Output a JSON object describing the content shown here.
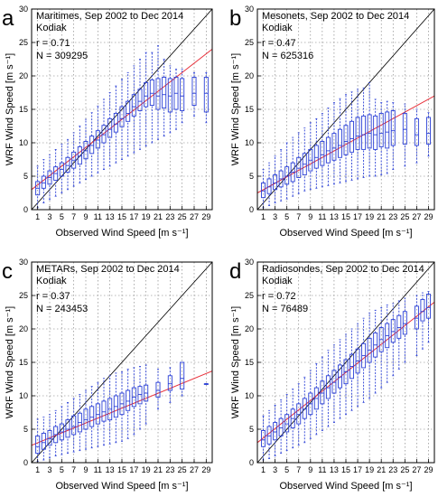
{
  "colors": {
    "box": "#2a3fd6",
    "fit": "#e8323c",
    "oneToOne": "#000000",
    "grid": "#777777"
  },
  "chart_data": [
    {
      "type": "boxplot",
      "panel_label": "a",
      "title": "Maritimes, Sep 2002 to Dec 2014",
      "subtitle": "Kodiak",
      "stat_r": "r = 0.71",
      "stat_n": "N = 309295",
      "xlabel": "Observed Wind Speed [m s⁻¹]",
      "ylabel": "WRF Wind Speed [m s⁻¹]",
      "xlim": [
        0,
        30
      ],
      "ylim": [
        0,
        30
      ],
      "x_ticks": [
        1,
        3,
        5,
        7,
        9,
        11,
        13,
        15,
        17,
        19,
        21,
        23,
        25,
        27,
        29
      ],
      "y_ticks": [
        0,
        5,
        10,
        15,
        20,
        25,
        30
      ],
      "grid": true,
      "fit_line": [
        [
          0,
          3.0
        ],
        [
          30,
          24.0
        ]
      ],
      "boxes": [
        {
          "x": 1,
          "q1": 2.2,
          "med": 3.2,
          "q3": 4.2,
          "lo": 0.3,
          "hi": 6.5
        },
        {
          "x": 2,
          "q1": 3.2,
          "med": 4.0,
          "q3": 5.0,
          "lo": 1.0,
          "hi": 7.5
        },
        {
          "x": 3,
          "q1": 3.8,
          "med": 4.8,
          "q3": 5.8,
          "lo": 1.5,
          "hi": 8.2
        },
        {
          "x": 4,
          "q1": 4.4,
          "med": 5.4,
          "q3": 6.4,
          "lo": 2.0,
          "hi": 9.0
        },
        {
          "x": 5,
          "q1": 5.0,
          "med": 6.0,
          "q3": 7.0,
          "lo": 2.5,
          "hi": 9.8
        },
        {
          "x": 6,
          "q1": 5.6,
          "med": 6.6,
          "q3": 7.8,
          "lo": 3.0,
          "hi": 10.5
        },
        {
          "x": 7,
          "q1": 6.2,
          "med": 7.4,
          "q3": 8.6,
          "lo": 3.5,
          "hi": 11.5
        },
        {
          "x": 8,
          "q1": 6.8,
          "med": 8.0,
          "q3": 9.4,
          "lo": 4.0,
          "hi": 12.5
        },
        {
          "x": 9,
          "q1": 7.6,
          "med": 8.8,
          "q3": 10.2,
          "lo": 4.5,
          "hi": 13.5
        },
        {
          "x": 10,
          "q1": 8.4,
          "med": 9.6,
          "q3": 11.0,
          "lo": 5.0,
          "hi": 14.5
        },
        {
          "x": 11,
          "q1": 9.2,
          "med": 10.4,
          "q3": 11.8,
          "lo": 5.5,
          "hi": 15.5
        },
        {
          "x": 12,
          "q1": 10.0,
          "med": 11.2,
          "q3": 12.6,
          "lo": 6.0,
          "hi": 16.5
        },
        {
          "x": 13,
          "q1": 10.8,
          "med": 12.0,
          "q3": 13.6,
          "lo": 6.5,
          "hi": 17.5
        },
        {
          "x": 14,
          "q1": 11.6,
          "med": 12.8,
          "q3": 14.4,
          "lo": 7.0,
          "hi": 18.5
        },
        {
          "x": 15,
          "q1": 12.4,
          "med": 13.6,
          "q3": 15.4,
          "lo": 7.5,
          "hi": 19.5
        },
        {
          "x": 16,
          "q1": 13.2,
          "med": 14.4,
          "q3": 16.2,
          "lo": 8.0,
          "hi": 20.5
        },
        {
          "x": 17,
          "q1": 14.0,
          "med": 15.4,
          "q3": 17.2,
          "lo": 8.5,
          "hi": 21.5
        },
        {
          "x": 18,
          "q1": 14.8,
          "med": 16.2,
          "q3": 18.0,
          "lo": 9.0,
          "hi": 22.5
        },
        {
          "x": 19,
          "q1": 15.4,
          "med": 17.0,
          "q3": 19.0,
          "lo": 9.5,
          "hi": 23.5
        },
        {
          "x": 20,
          "q1": 15.6,
          "med": 17.4,
          "q3": 19.4,
          "lo": 10.0,
          "hi": 23.5
        },
        {
          "x": 21,
          "q1": 15.0,
          "med": 17.0,
          "q3": 19.6,
          "lo": 10.5,
          "hi": 24.5
        },
        {
          "x": 22,
          "q1": 15.2,
          "med": 17.2,
          "q3": 19.8,
          "lo": 11.0,
          "hi": 22.5
        },
        {
          "x": 23,
          "q1": 14.6,
          "med": 17.0,
          "q3": 19.6,
          "lo": 11.5,
          "hi": 21.5
        },
        {
          "x": 24,
          "q1": 15.0,
          "med": 17.4,
          "q3": 19.8,
          "lo": 12.0,
          "hi": 21.0
        },
        {
          "x": 25,
          "q1": 14.8,
          "med": 17.0,
          "q3": 19.6,
          "lo": 13.0,
          "hi": 21.0
        },
        {
          "x": 27,
          "q1": 15.6,
          "med": 17.4,
          "q3": 19.8,
          "lo": 14.0,
          "hi": 20.5
        },
        {
          "x": 29,
          "q1": 14.6,
          "med": 17.4,
          "q3": 19.8,
          "lo": 13.0,
          "hi": 20.5
        }
      ]
    },
    {
      "type": "boxplot",
      "panel_label": "b",
      "title": "Mesonets, Sep 2002 to Dec 2014",
      "subtitle": "Kodiak",
      "stat_r": "r = 0.47",
      "stat_n": "N = 625316",
      "xlabel": "Observed Wind Speed [m s⁻¹]",
      "ylabel": "WRF Wind Speed [m s⁻¹]",
      "xlim": [
        0,
        30
      ],
      "ylim": [
        0,
        30
      ],
      "x_ticks": [
        1,
        3,
        5,
        7,
        9,
        11,
        13,
        15,
        17,
        19,
        21,
        23,
        25,
        27,
        29
      ],
      "y_ticks": [
        0,
        5,
        10,
        15,
        20,
        25,
        30
      ],
      "grid": true,
      "fit_line": [
        [
          0,
          2.5
        ],
        [
          30,
          17.0
        ]
      ],
      "boxes": [
        {
          "x": 1,
          "q1": 1.8,
          "med": 2.8,
          "q3": 4.0,
          "lo": 0.3,
          "hi": 6.0
        },
        {
          "x": 2,
          "q1": 2.4,
          "med": 3.4,
          "q3": 4.6,
          "lo": 0.6,
          "hi": 7.0
        },
        {
          "x": 3,
          "q1": 3.0,
          "med": 4.0,
          "q3": 5.2,
          "lo": 1.0,
          "hi": 8.0
        },
        {
          "x": 4,
          "q1": 3.4,
          "med": 4.6,
          "q3": 5.8,
          "lo": 1.3,
          "hi": 9.0
        },
        {
          "x": 5,
          "q1": 3.8,
          "med": 5.0,
          "q3": 6.4,
          "lo": 1.6,
          "hi": 10.0
        },
        {
          "x": 6,
          "q1": 4.2,
          "med": 5.6,
          "q3": 7.0,
          "lo": 2.0,
          "hi": 10.8
        },
        {
          "x": 7,
          "q1": 4.8,
          "med": 6.2,
          "q3": 7.8,
          "lo": 2.4,
          "hi": 11.5
        },
        {
          "x": 8,
          "q1": 5.2,
          "med": 6.8,
          "q3": 8.4,
          "lo": 2.8,
          "hi": 12.2
        },
        {
          "x": 9,
          "q1": 5.8,
          "med": 7.4,
          "q3": 9.0,
          "lo": 3.0,
          "hi": 13.0
        },
        {
          "x": 10,
          "q1": 6.2,
          "med": 7.8,
          "q3": 9.6,
          "lo": 3.2,
          "hi": 13.6
        },
        {
          "x": 11,
          "q1": 6.6,
          "med": 8.2,
          "q3": 10.2,
          "lo": 3.4,
          "hi": 14.4
        },
        {
          "x": 12,
          "q1": 7.0,
          "med": 8.8,
          "q3": 10.8,
          "lo": 3.6,
          "hi": 15.2
        },
        {
          "x": 13,
          "q1": 7.4,
          "med": 9.2,
          "q3": 11.4,
          "lo": 3.8,
          "hi": 16.0
        },
        {
          "x": 14,
          "q1": 7.8,
          "med": 9.6,
          "q3": 12.0,
          "lo": 4.0,
          "hi": 16.6
        },
        {
          "x": 15,
          "q1": 8.2,
          "med": 10.2,
          "q3": 12.6,
          "lo": 4.2,
          "hi": 17.2
        },
        {
          "x": 16,
          "q1": 8.6,
          "med": 10.6,
          "q3": 13.2,
          "lo": 4.4,
          "hi": 17.6
        },
        {
          "x": 17,
          "q1": 9.0,
          "med": 11.0,
          "q3": 13.8,
          "lo": 4.6,
          "hi": 18.0
        },
        {
          "x": 18,
          "q1": 9.0,
          "med": 11.2,
          "q3": 14.0,
          "lo": 4.8,
          "hi": 18.2
        },
        {
          "x": 19,
          "q1": 9.2,
          "med": 11.4,
          "q3": 14.2,
          "lo": 5.0,
          "hi": 19.0
        },
        {
          "x": 20,
          "q1": 9.0,
          "med": 11.2,
          "q3": 14.0,
          "lo": 5.0,
          "hi": 16.5
        },
        {
          "x": 21,
          "q1": 9.4,
          "med": 11.4,
          "q3": 14.4,
          "lo": 5.2,
          "hi": 16.0
        },
        {
          "x": 22,
          "q1": 9.2,
          "med": 11.6,
          "q3": 14.6,
          "lo": 5.4,
          "hi": 16.2
        },
        {
          "x": 23,
          "q1": 9.6,
          "med": 11.8,
          "q3": 14.8,
          "lo": 6.0,
          "hi": 16.0
        },
        {
          "x": 25,
          "q1": 9.8,
          "med": 12.0,
          "q3": 14.4,
          "lo": 6.5,
          "hi": 15.8
        },
        {
          "x": 27,
          "q1": 9.6,
          "med": 11.2,
          "q3": 13.6,
          "lo": 7.0,
          "hi": 15.0
        },
        {
          "x": 29,
          "q1": 9.8,
          "med": 11.4,
          "q3": 13.8,
          "lo": 8.0,
          "hi": 14.5
        }
      ]
    },
    {
      "type": "boxplot",
      "panel_label": "c",
      "title": "METARs, Sep 2002 to Dec 2014",
      "subtitle": "Kodiak",
      "stat_r": "r = 0.37",
      "stat_n": "N = 243453",
      "xlabel": "Observed Wind Speed [m s⁻¹]",
      "ylabel": "WRF Wind Speed [m s⁻¹]",
      "xlim": [
        0,
        30
      ],
      "ylim": [
        0,
        30
      ],
      "x_ticks": [
        1,
        3,
        5,
        7,
        9,
        11,
        13,
        15,
        17,
        19,
        21,
        23,
        25,
        27,
        29
      ],
      "y_ticks": [
        0,
        5,
        10,
        15,
        20,
        25,
        30
      ],
      "grid": true,
      "fit_line": [
        [
          0,
          2.6
        ],
        [
          30,
          13.7
        ]
      ],
      "boxes": [
        {
          "x": 1,
          "q1": 1.4,
          "med": 2.4,
          "q3": 4.0,
          "lo": 0.2,
          "hi": 6.5
        },
        {
          "x": 2,
          "q1": 2.0,
          "med": 3.0,
          "q3": 4.4,
          "lo": 0.4,
          "hi": 6.8
        },
        {
          "x": 3,
          "q1": 2.6,
          "med": 3.6,
          "q3": 4.8,
          "lo": 0.7,
          "hi": 7.2
        },
        {
          "x": 4,
          "q1": 3.0,
          "med": 4.2,
          "q3": 5.4,
          "lo": 1.0,
          "hi": 7.8
        },
        {
          "x": 5,
          "q1": 3.4,
          "med": 4.6,
          "q3": 5.8,
          "lo": 1.2,
          "hi": 8.4
        },
        {
          "x": 6,
          "q1": 3.8,
          "med": 5.0,
          "q3": 6.4,
          "lo": 1.4,
          "hi": 9.0
        },
        {
          "x": 7,
          "q1": 4.2,
          "med": 5.4,
          "q3": 7.0,
          "lo": 1.6,
          "hi": 9.6
        },
        {
          "x": 8,
          "q1": 4.6,
          "med": 6.0,
          "q3": 7.4,
          "lo": 1.8,
          "hi": 10.2
        },
        {
          "x": 9,
          "q1": 5.0,
          "med": 6.4,
          "q3": 8.0,
          "lo": 2.0,
          "hi": 10.8
        },
        {
          "x": 10,
          "q1": 5.4,
          "med": 6.8,
          "q3": 8.4,
          "lo": 2.2,
          "hi": 11.4
        },
        {
          "x": 11,
          "q1": 5.8,
          "med": 7.2,
          "q3": 8.8,
          "lo": 2.4,
          "hi": 12.0
        },
        {
          "x": 12,
          "q1": 6.2,
          "med": 7.6,
          "q3": 9.2,
          "lo": 2.6,
          "hi": 12.6
        },
        {
          "x": 13,
          "q1": 6.4,
          "med": 8.0,
          "q3": 9.6,
          "lo": 2.8,
          "hi": 13.0
        },
        {
          "x": 14,
          "q1": 6.8,
          "med": 8.4,
          "q3": 10.0,
          "lo": 3.0,
          "hi": 13.4
        },
        {
          "x": 15,
          "q1": 7.2,
          "med": 8.8,
          "q3": 10.4,
          "lo": 3.2,
          "hi": 13.6
        },
        {
          "x": 16,
          "q1": 7.8,
          "med": 9.2,
          "q3": 10.8,
          "lo": 3.6,
          "hi": 14.0
        },
        {
          "x": 17,
          "q1": 8.4,
          "med": 9.8,
          "q3": 11.2,
          "lo": 4.2,
          "hi": 14.2
        },
        {
          "x": 18,
          "q1": 8.8,
          "med": 10.2,
          "q3": 11.4,
          "lo": 5.0,
          "hi": 14.4
        },
        {
          "x": 19,
          "q1": 9.2,
          "med": 10.4,
          "q3": 11.6,
          "lo": 5.8,
          "hi": 14.6
        },
        {
          "x": 21,
          "q1": 9.8,
          "med": 10.8,
          "q3": 12.0,
          "lo": 8.0,
          "hi": 14.0
        },
        {
          "x": 23,
          "q1": 10.8,
          "med": 11.8,
          "q3": 13.0,
          "lo": 9.0,
          "hi": 14.2
        },
        {
          "x": 25,
          "q1": 11.0,
          "med": 12.6,
          "q3": 15.0,
          "lo": 10.0,
          "hi": 15.0
        },
        {
          "x": 29,
          "q1": 11.8,
          "med": 11.8,
          "q3": 11.8,
          "lo": 11.8,
          "hi": 11.8
        }
      ]
    },
    {
      "type": "boxplot",
      "panel_label": "d",
      "title": "Radiosondes, Sep 2002 to Dec 2014",
      "subtitle": "Kodiak",
      "stat_r": "r = 0.72",
      "stat_n": "N = 76489",
      "xlabel": "Observed Wind Speed [m s⁻¹]",
      "ylabel": "WRF Wind Speed [m s⁻¹]",
      "xlim": [
        0,
        30
      ],
      "ylim": [
        0,
        30
      ],
      "x_ticks": [
        1,
        3,
        5,
        7,
        9,
        11,
        13,
        15,
        17,
        19,
        21,
        23,
        25,
        27,
        29
      ],
      "y_ticks": [
        0,
        5,
        10,
        15,
        20,
        25,
        30
      ],
      "grid": true,
      "fit_line": [
        [
          0,
          3.0
        ],
        [
          30,
          24.0
        ]
      ],
      "boxes": [
        {
          "x": 1,
          "q1": 2.4,
          "med": 3.4,
          "q3": 4.8,
          "lo": 0.4,
          "hi": 7.0
        },
        {
          "x": 2,
          "q1": 2.8,
          "med": 4.0,
          "q3": 5.4,
          "lo": 0.6,
          "hi": 7.8
        },
        {
          "x": 3,
          "q1": 3.4,
          "med": 4.6,
          "q3": 6.0,
          "lo": 1.0,
          "hi": 8.6
        },
        {
          "x": 4,
          "q1": 4.0,
          "med": 5.2,
          "q3": 6.6,
          "lo": 1.4,
          "hi": 9.4
        },
        {
          "x": 5,
          "q1": 4.6,
          "med": 5.8,
          "q3": 7.2,
          "lo": 1.8,
          "hi": 10.2
        },
        {
          "x": 6,
          "q1": 5.2,
          "med": 6.6,
          "q3": 8.0,
          "lo": 2.2,
          "hi": 11.0
        },
        {
          "x": 7,
          "q1": 5.8,
          "med": 7.2,
          "q3": 8.8,
          "lo": 2.6,
          "hi": 11.8
        },
        {
          "x": 8,
          "q1": 6.6,
          "med": 8.0,
          "q3": 9.6,
          "lo": 3.0,
          "hi": 12.8
        },
        {
          "x": 9,
          "q1": 7.2,
          "med": 8.8,
          "q3": 10.4,
          "lo": 3.6,
          "hi": 13.8
        },
        {
          "x": 10,
          "q1": 8.0,
          "med": 9.6,
          "q3": 11.2,
          "lo": 4.2,
          "hi": 14.8
        },
        {
          "x": 11,
          "q1": 8.8,
          "med": 10.4,
          "q3": 12.2,
          "lo": 4.8,
          "hi": 15.8
        },
        {
          "x": 12,
          "q1": 9.6,
          "med": 11.2,
          "q3": 13.0,
          "lo": 5.4,
          "hi": 16.8
        },
        {
          "x": 13,
          "q1": 10.4,
          "med": 12.0,
          "q3": 13.8,
          "lo": 6.0,
          "hi": 17.6
        },
        {
          "x": 14,
          "q1": 11.2,
          "med": 12.8,
          "q3": 14.6,
          "lo": 6.6,
          "hi": 18.4
        },
        {
          "x": 15,
          "q1": 11.8,
          "med": 13.6,
          "q3": 15.4,
          "lo": 7.2,
          "hi": 19.2
        },
        {
          "x": 16,
          "q1": 12.6,
          "med": 14.4,
          "q3": 16.2,
          "lo": 7.8,
          "hi": 20.0
        },
        {
          "x": 17,
          "q1": 13.4,
          "med": 15.2,
          "q3": 17.0,
          "lo": 8.4,
          "hi": 20.8
        },
        {
          "x": 18,
          "q1": 14.2,
          "med": 16.0,
          "q3": 17.8,
          "lo": 9.0,
          "hi": 21.6
        },
        {
          "x": 19,
          "q1": 15.0,
          "med": 16.8,
          "q3": 18.6,
          "lo": 9.6,
          "hi": 22.4
        },
        {
          "x": 20,
          "q1": 15.8,
          "med": 17.6,
          "q3": 19.4,
          "lo": 10.4,
          "hi": 22.8
        },
        {
          "x": 21,
          "q1": 16.6,
          "med": 18.4,
          "q3": 20.2,
          "lo": 11.2,
          "hi": 23.2
        },
        {
          "x": 22,
          "q1": 17.2,
          "med": 19.0,
          "q3": 20.8,
          "lo": 12.0,
          "hi": 23.6
        },
        {
          "x": 23,
          "q1": 18.0,
          "med": 19.6,
          "q3": 21.4,
          "lo": 13.0,
          "hi": 23.8
        },
        {
          "x": 24,
          "q1": 18.6,
          "med": 20.2,
          "q3": 22.0,
          "lo": 14.0,
          "hi": 24.2
        },
        {
          "x": 25,
          "q1": 19.2,
          "med": 20.8,
          "q3": 22.6,
          "lo": 15.0,
          "hi": 24.6
        },
        {
          "x": 27,
          "q1": 20.0,
          "med": 21.6,
          "q3": 23.4,
          "lo": 16.0,
          "hi": 25.0
        },
        {
          "x": 28,
          "q1": 21.2,
          "med": 22.6,
          "q3": 24.4,
          "lo": 17.0,
          "hi": 25.4
        },
        {
          "x": 29,
          "q1": 21.6,
          "med": 23.2,
          "q3": 25.2,
          "lo": 18.0,
          "hi": 25.6
        }
      ]
    }
  ]
}
